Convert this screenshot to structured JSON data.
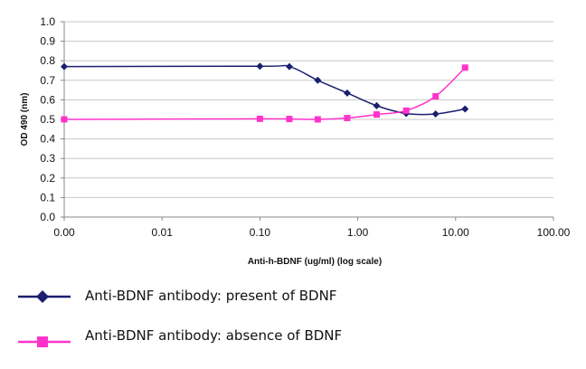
{
  "chart_data": {
    "type": "line",
    "title": "",
    "xlabel": "Anti-h-BDNF (ug/ml) (log scale)",
    "ylabel": "OD 490 (nm)",
    "x_scale": "log",
    "xlim": [
      0.001,
      100
    ],
    "ylim": [
      0,
      1.0
    ],
    "x_tick_labels": [
      "0.00",
      "0.01",
      "0.10",
      "1.00",
      "10.00",
      "100.00"
    ],
    "x_tick_values": [
      0.001,
      0.01,
      0.1,
      1,
      10,
      100
    ],
    "y_tick_labels": [
      "0.0",
      "0.1",
      "0.2",
      "0.3",
      "0.4",
      "0.5",
      "0.6",
      "0.7",
      "0.8",
      "0.9",
      "1.0"
    ],
    "y_tick_values": [
      0,
      0.1,
      0.2,
      0.3,
      0.4,
      0.5,
      0.6,
      0.7,
      0.8,
      0.9,
      1.0
    ],
    "grid": "horizontal",
    "legend_position": "bottom",
    "series": [
      {
        "name": "Anti-BDNF antibody: present of BDNF",
        "color": "#1a1f6e",
        "marker": "diamond",
        "x": [
          0.001,
          0.1,
          0.2,
          0.39,
          0.78,
          1.56,
          3.13,
          6.25,
          12.5
        ],
        "y": [
          0.77,
          0.772,
          0.77,
          0.7,
          0.635,
          0.57,
          0.53,
          0.528,
          0.553
        ]
      },
      {
        "name": "Anti-BDNF antibody: absence of BDNF",
        "color": "#ff33cc",
        "marker": "square",
        "x": [
          0.001,
          0.1,
          0.2,
          0.39,
          0.78,
          1.56,
          3.13,
          6.25,
          12.5
        ],
        "y": [
          0.5,
          0.503,
          0.502,
          0.5,
          0.507,
          0.525,
          0.545,
          0.618,
          0.765
        ]
      }
    ]
  }
}
